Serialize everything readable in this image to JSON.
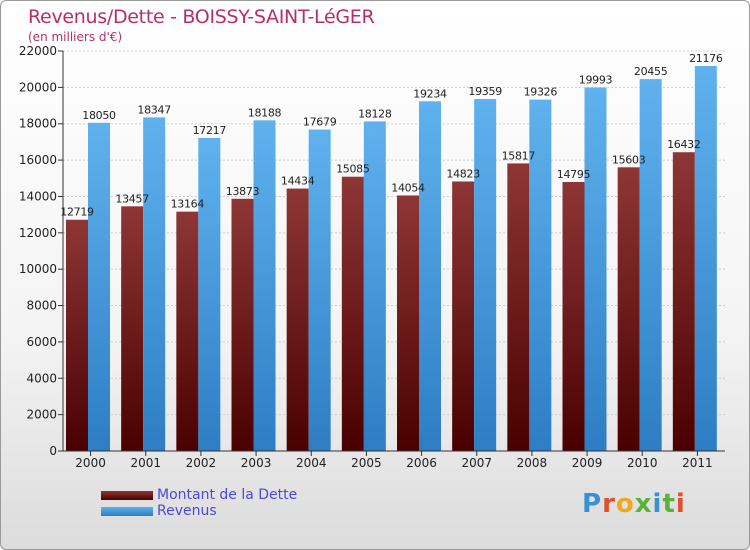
{
  "header": {
    "title": "Revenus/Dette - BOISSY-SAINT-LéGER",
    "subtitle": "(en milliers d'€)"
  },
  "legend": {
    "items": [
      {
        "label": "Montant de la Dette",
        "color": "#6b1a1a"
      },
      {
        "label": "Revenus",
        "color": "#4fa3e3"
      }
    ]
  },
  "brand": {
    "logo_text": "Proxiti",
    "letter_colors": [
      "#3a8fd6",
      "#e0502a",
      "#f2a81d",
      "#59b33a",
      "#3a8fd6",
      "#59b33a",
      "#e0502a"
    ]
  },
  "chart_data": {
    "type": "bar",
    "title": "Revenus/Dette - BOISSY-SAINT-LéGER",
    "subtitle": "(en milliers d'€)",
    "categories": [
      "2000",
      "2001",
      "2002",
      "2003",
      "2004",
      "2005",
      "2006",
      "2007",
      "2008",
      "2009",
      "2010",
      "2011"
    ],
    "series": [
      {
        "name": "Montant de la Dette",
        "color": "#6b1a1a",
        "values": [
          12719,
          13457,
          13164,
          13873,
          14434,
          15085,
          14054,
          14823,
          15817,
          14795,
          15603,
          16432
        ],
        "labels": [
          "12719",
          "13457",
          "13164",
          "13873",
          "14434",
          "15085",
          "14054",
          "14823",
          "15817",
          "14795",
          "15603",
          "16432"
        ]
      },
      {
        "name": "Revenus",
        "color": "#4fa3e3",
        "values": [
          18050,
          18347,
          17217,
          18188,
          17679,
          18128,
          19234,
          19359,
          19326,
          19993,
          20455,
          21176
        ],
        "labels": [
          "18050",
          "18347",
          "17217",
          "18188",
          "17679",
          "18128",
          "19234",
          "19359",
          "19326",
          "19993",
          "20455",
          "21176"
        ]
      }
    ],
    "ylim": [
      0,
      22000
    ],
    "yticks": [
      0,
      2000,
      4000,
      6000,
      8000,
      10000,
      12000,
      14000,
      16000,
      18000,
      20000,
      22000
    ],
    "grid": true,
    "legend_position": "bottom-left"
  }
}
